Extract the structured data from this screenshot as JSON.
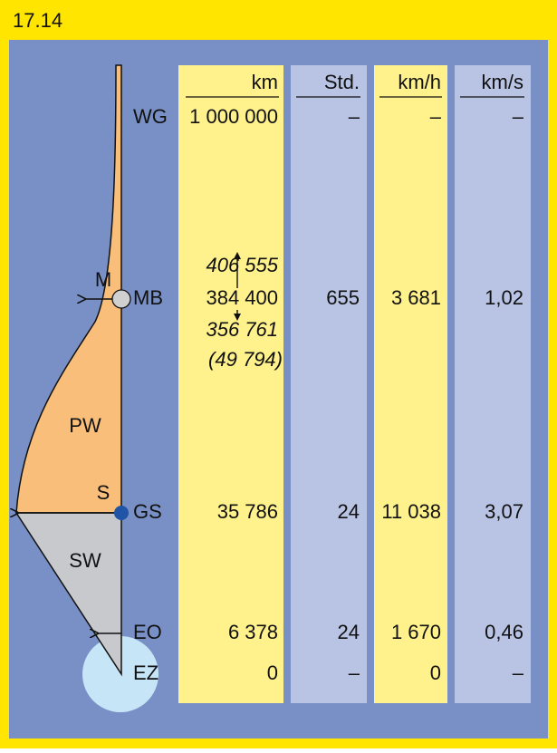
{
  "title": "17.14",
  "columns": [
    "km",
    "Std.",
    "km/h",
    "km/s"
  ],
  "rows": [
    {
      "label": "WG",
      "cells": [
        "1 000 000",
        "–",
        "–",
        "–"
      ]
    },
    {
      "label": "MB",
      "cells": [
        "384 400",
        "655",
        "3 681",
        "1,02"
      ]
    },
    {
      "label": "GS",
      "cells": [
        "35 786",
        "24",
        "11 038",
        "3,07"
      ]
    },
    {
      "label": "EO",
      "cells": [
        "6 378",
        "24",
        "1 670",
        "0,46"
      ]
    },
    {
      "label": "EZ",
      "cells": [
        "0",
        "–",
        "0",
        "–"
      ]
    }
  ],
  "moon_distances": {
    "apogee": "406 555",
    "perigee": "356 761",
    "difference": "(49 794)"
  },
  "shape_labels": [
    "M",
    "PW",
    "S",
    "SW"
  ]
}
